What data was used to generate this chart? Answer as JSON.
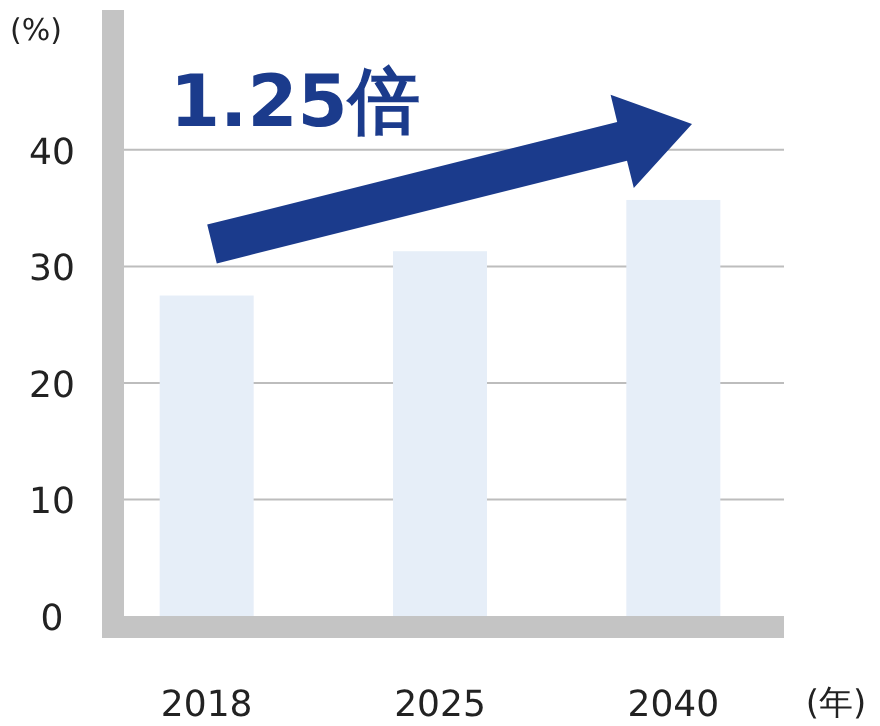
{
  "chart_data": {
    "type": "bar",
    "categories": [
      "2018",
      "2025",
      "2040"
    ],
    "values": [
      27.5,
      31.3,
      35.7
    ],
    "color": "#e6eef8",
    "ylabel": "(%)",
    "xlabel": "(年)",
    "ylim": [
      0,
      52
    ],
    "yticks": [
      0,
      10,
      20,
      30,
      40
    ],
    "grid": "y",
    "annotations": [
      "1.25倍"
    ]
  }
}
